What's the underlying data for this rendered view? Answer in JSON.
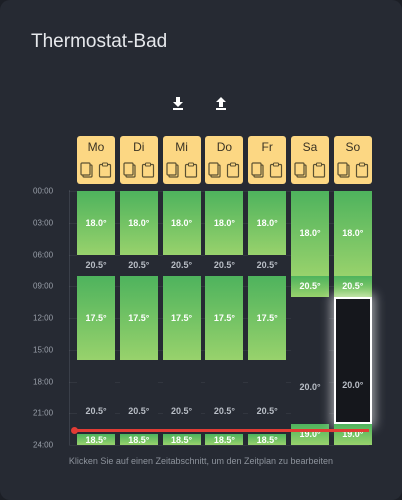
{
  "card": {
    "title": "Thermostat-Bad"
  },
  "toolbar": [
    {
      "name": "download-icon",
      "label": "Download"
    },
    {
      "name": "upload-icon",
      "label": "Upload"
    }
  ],
  "time_axis": [
    "00:00",
    "03:00",
    "06:00",
    "09:00",
    "12:00",
    "15:00",
    "18:00",
    "21:00",
    "24:00"
  ],
  "now": "21:00",
  "days": [
    {
      "label": "Mo",
      "segments": [
        {
          "start": "00:00",
          "end": "06:00",
          "temp": "18.0°",
          "type": "warm"
        },
        {
          "start": "06:00",
          "end": "08:00",
          "temp": "20.5°",
          "type": "cold"
        },
        {
          "start": "08:00",
          "end": "16:00",
          "temp": "17.5°",
          "type": "warm"
        },
        {
          "start": "16:00",
          "end": "23:00",
          "temp": "20.5°",
          "type": "cold"
        },
        {
          "start": "23:00",
          "end": "24:00",
          "temp": "18.5°",
          "type": "warm"
        }
      ]
    },
    {
      "label": "Di",
      "segments": [
        {
          "start": "00:00",
          "end": "06:00",
          "temp": "18.0°",
          "type": "warm"
        },
        {
          "start": "06:00",
          "end": "08:00",
          "temp": "20.5°",
          "type": "cold"
        },
        {
          "start": "08:00",
          "end": "16:00",
          "temp": "17.5°",
          "type": "warm"
        },
        {
          "start": "16:00",
          "end": "23:00",
          "temp": "20.5°",
          "type": "cold"
        },
        {
          "start": "23:00",
          "end": "24:00",
          "temp": "18.5°",
          "type": "warm"
        }
      ]
    },
    {
      "label": "Mi",
      "segments": [
        {
          "start": "00:00",
          "end": "06:00",
          "temp": "18.0°",
          "type": "warm"
        },
        {
          "start": "06:00",
          "end": "08:00",
          "temp": "20.5°",
          "type": "cold"
        },
        {
          "start": "08:00",
          "end": "16:00",
          "temp": "17.5°",
          "type": "warm"
        },
        {
          "start": "16:00",
          "end": "23:00",
          "temp": "20.5°",
          "type": "cold"
        },
        {
          "start": "23:00",
          "end": "24:00",
          "temp": "18.5°",
          "type": "warm"
        }
      ]
    },
    {
      "label": "Do",
      "segments": [
        {
          "start": "00:00",
          "end": "06:00",
          "temp": "18.0°",
          "type": "warm"
        },
        {
          "start": "06:00",
          "end": "08:00",
          "temp": "20.5°",
          "type": "cold"
        },
        {
          "start": "08:00",
          "end": "16:00",
          "temp": "17.5°",
          "type": "warm"
        },
        {
          "start": "16:00",
          "end": "23:00",
          "temp": "20.5°",
          "type": "cold"
        },
        {
          "start": "23:00",
          "end": "24:00",
          "temp": "18.5°",
          "type": "warm"
        }
      ]
    },
    {
      "label": "Fr",
      "segments": [
        {
          "start": "00:00",
          "end": "06:00",
          "temp": "18.0°",
          "type": "warm"
        },
        {
          "start": "06:00",
          "end": "08:00",
          "temp": "20.5°",
          "type": "cold"
        },
        {
          "start": "08:00",
          "end": "16:00",
          "temp": "17.5°",
          "type": "warm"
        },
        {
          "start": "16:00",
          "end": "23:00",
          "temp": "20.5°",
          "type": "cold"
        },
        {
          "start": "23:00",
          "end": "24:00",
          "temp": "18.5°",
          "type": "warm"
        }
      ]
    },
    {
      "label": "Sa",
      "segments": [
        {
          "start": "00:00",
          "end": "08:00",
          "temp": "18.0°",
          "type": "warm"
        },
        {
          "start": "08:00",
          "end": "10:00",
          "temp": "20.5°",
          "type": "warm"
        },
        {
          "start": "10:00",
          "end": "22:00",
          "temp": "20.0°",
          "type": "cold"
        },
        {
          "start": "22:00",
          "end": "24:00",
          "temp": "19.0°",
          "type": "warm"
        }
      ]
    },
    {
      "label": "So",
      "segments": [
        {
          "start": "00:00",
          "end": "08:00",
          "temp": "18.0°",
          "type": "warm"
        },
        {
          "start": "08:00",
          "end": "10:00",
          "temp": "20.5°",
          "type": "warm"
        },
        {
          "start": "10:00",
          "end": "22:00",
          "temp": "20.0°",
          "type": "cold",
          "selected": true
        },
        {
          "start": "22:00",
          "end": "24:00",
          "temp": "19.0°",
          "type": "warm"
        }
      ]
    }
  ],
  "hint": "Klicken Sie auf einen Zeitabschnitt, um den Zeitplan zu bearbeiten",
  "colors": {
    "warm_top": "#4eb35d",
    "warm_bottom": "#98d26c",
    "day_header": "#fcd783",
    "now_line": "#e23c35"
  }
}
